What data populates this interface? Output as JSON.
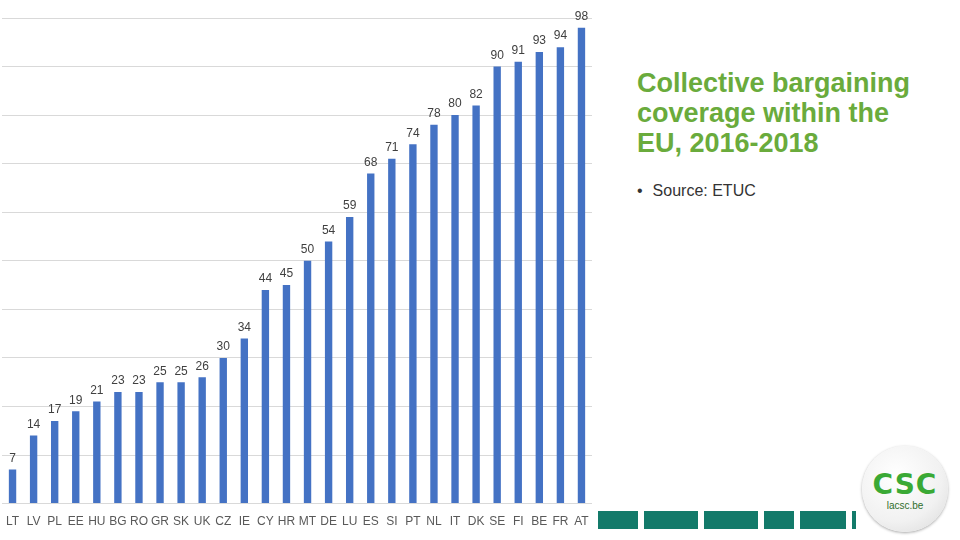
{
  "chart_data": {
    "type": "bar",
    "title": "Collective bargaining coverage within the EU, 2016-2018",
    "annotations": [
      "Source: ETUC"
    ],
    "categories": [
      "LT",
      "LV",
      "PL",
      "EE",
      "HU",
      "BG",
      "RO",
      "GR",
      "SK",
      "UK",
      "CZ",
      "IE",
      "CY",
      "HR",
      "MT",
      "DE",
      "LU",
      "ES",
      "SI",
      "PT",
      "NL",
      "IT",
      "DK",
      "SE",
      "FI",
      "BE",
      "FR",
      "AT"
    ],
    "values": [
      7,
      14,
      17,
      19,
      21,
      23,
      23,
      25,
      25,
      26,
      30,
      34,
      44,
      45,
      50,
      54,
      59,
      68,
      71,
      74,
      78,
      80,
      82,
      90,
      91,
      93,
      94,
      98
    ],
    "color": "#4472c4",
    "ylim": [
      0,
      100
    ],
    "yticks": [
      0,
      10,
      20,
      30,
      40,
      50,
      60,
      70,
      80,
      90,
      100
    ],
    "grid": true,
    "data_labels": true,
    "tick_labels": "x"
  },
  "logo": {
    "text": "CSC",
    "caption": "lacsc.be"
  }
}
